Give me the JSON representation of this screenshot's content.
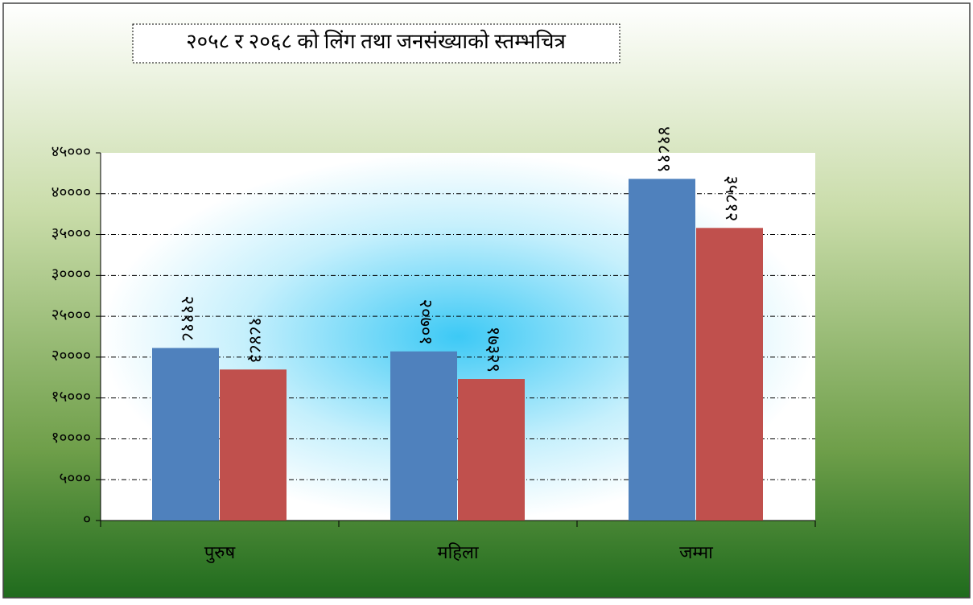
{
  "chart_data": {
    "type": "bar",
    "title": "२०५८ र २०६८ को लिंग तथा जनसंख्याको स्तम्भचित्र",
    "categories": [
      "पुरुष",
      "महिला",
      "जम्मा"
    ],
    "series": [
      {
        "color": "#4f81bd",
        "values": [
          21118,
          20701,
          41819
        ],
        "value_labels": [
          "२१११८",
          "२०७०१",
          "४१८१९"
        ]
      },
      {
        "color": "#c0504d",
        "values": [
          18483,
          17329,
          35812
        ],
        "value_labels": [
          "१८४८३",
          "१७३२९",
          "३५८१२"
        ]
      }
    ],
    "ylim": [
      0,
      45000
    ],
    "yticks": [
      {
        "value": 0,
        "label": "०"
      },
      {
        "value": 5000,
        "label": "५०००"
      },
      {
        "value": 10000,
        "label": "१००००"
      },
      {
        "value": 15000,
        "label": "१५०००"
      },
      {
        "value": 20000,
        "label": "२००००"
      },
      {
        "value": 25000,
        "label": "२५०००"
      },
      {
        "value": 30000,
        "label": "३००००"
      },
      {
        "value": 35000,
        "label": "३५०००"
      },
      {
        "value": 40000,
        "label": "४००००"
      },
      {
        "value": 45000,
        "label": "४५०००"
      }
    ],
    "grid": true
  }
}
